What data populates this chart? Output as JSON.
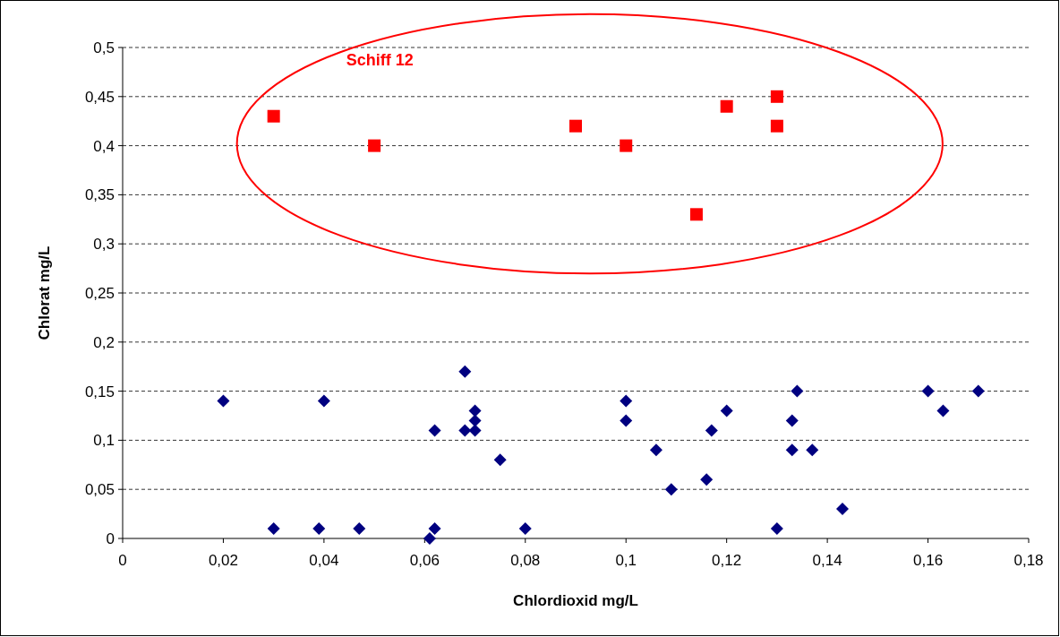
{
  "chart_data": {
    "type": "scatter",
    "xlabel": "Chlordioxid mg/L",
    "ylabel": "Chlorat mg/L",
    "xlim": [
      0,
      0.18
    ],
    "xticks": [
      0,
      {
        "value": 0.02,
        "label": "0,02"
      },
      {
        "value": 0.04,
        "label": "0,04"
      },
      {
        "value": 0.06,
        "label": "0,06"
      },
      {
        "value": 0.08,
        "label": "0,08"
      },
      {
        "value": 0.1,
        "label": "0,1"
      },
      {
        "value": 0.12,
        "label": "0,12"
      },
      {
        "value": 0.14,
        "label": "0,14"
      },
      {
        "value": 0.16,
        "label": "0,16"
      },
      {
        "value": 0.18,
        "label": "0,18"
      }
    ],
    "ylim": [
      0,
      0.5
    ],
    "yticks": [
      0,
      {
        "value": 0.05,
        "label": "0,05"
      },
      {
        "value": 0.1,
        "label": "0,1"
      },
      {
        "value": 0.15,
        "label": "0,15"
      },
      {
        "value": 0.2,
        "label": "0,2"
      },
      {
        "value": 0.25,
        "label": "0,25"
      },
      {
        "value": 0.3,
        "label": "0,3"
      },
      {
        "value": 0.35,
        "label": "0,35"
      },
      {
        "value": 0.4,
        "label": "0,4"
      },
      {
        "value": 0.45,
        "label": "0,45"
      },
      {
        "value": 0.5,
        "label": "0,5"
      }
    ],
    "grid": "y",
    "series": [
      {
        "color": "#000080",
        "marker": "diamond",
        "x": [
          0.02,
          0.03,
          0.039,
          0.04,
          0.047,
          0.061,
          0.062,
          0.062,
          0.068,
          0.068,
          0.07,
          0.07,
          0.07,
          0.075,
          0.08,
          0.1,
          0.1,
          0.106,
          0.109,
          0.116,
          0.117,
          0.12,
          0.13,
          0.133,
          0.133,
          0.134,
          0.137,
          0.143,
          0.16,
          0.163,
          0.17
        ],
        "values": [
          0.14,
          0.01,
          0.01,
          0.14,
          0.01,
          0,
          0.01,
          0.11,
          0.17,
          0.11,
          0.13,
          0.12,
          0.11,
          0.08,
          0.01,
          0.14,
          0.12,
          0.09,
          0.05,
          0.06,
          0.11,
          0.13,
          0.01,
          0.12,
          0.09,
          0.15,
          0.09,
          0.03,
          0.15,
          0.13,
          0.15
        ]
      },
      {
        "color": "#ff0000",
        "marker": "square",
        "x": [
          0.03,
          0.05,
          0.09,
          0.1,
          0.114,
          0.12,
          0.13,
          0.13
        ],
        "values": [
          0.43,
          0.4,
          0.42,
          0.4,
          0.33,
          0.44,
          0.45,
          0.42
        ]
      }
    ],
    "annotations": [
      "Schiff 12"
    ]
  }
}
